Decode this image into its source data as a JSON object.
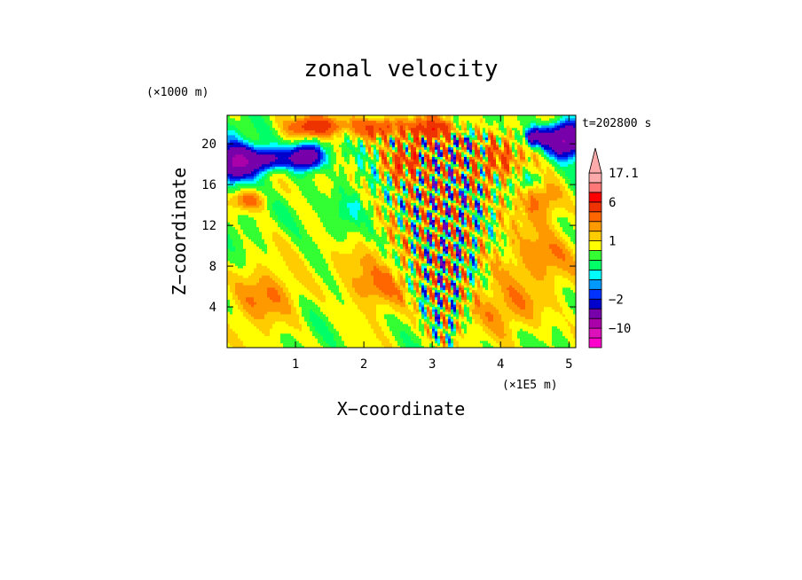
{
  "chart_data": {
    "type": "heatmap",
    "title": "zonal velocity",
    "xlabel": "X−coordinate",
    "ylabel": "Z−coordinate",
    "x_unit": "(×1E5 m)",
    "y_unit": "(×1000 m)",
    "time_label": "t=202800 s",
    "xlim": [
      0,
      5.1
    ],
    "ylim": [
      0,
      22.8
    ],
    "x_ticks": [
      "1",
      "2",
      "3",
      "4",
      "5"
    ],
    "x_tick_values": [
      1,
      2,
      3,
      4,
      5
    ],
    "y_ticks": [
      "4",
      "8",
      "12",
      "16",
      "20"
    ],
    "y_tick_values": [
      4,
      8,
      12,
      16,
      20
    ],
    "colorbar": {
      "labels": [
        "17.1",
        "6",
        "1",
        "−2",
        "−10"
      ],
      "label_values": [
        17.1,
        6,
        1,
        -2,
        -10
      ],
      "levels": [
        -20,
        -15,
        -10,
        -6,
        -3,
        -2,
        -1.5,
        -1,
        -0.5,
        0,
        0.5,
        1,
        1.5,
        2,
        3,
        6,
        10,
        15,
        17.1
      ],
      "colors": [
        "#ff00cc",
        "#dd11bb",
        "#aa00aa",
        "#7700aa",
        "#0000cc",
        "#0033ff",
        "#0099ff",
        "#00ffff",
        "#00ff66",
        "#33ff33",
        "#ffff00",
        "#ffcc00",
        "#ff9900",
        "#ff6600",
        "#ee3300",
        "#ff0000",
        "#ff7777",
        "#ffaaaa"
      ],
      "extend": "max"
    },
    "field_summary": "Jet-like disturbance centred near x=3.2 rising from the surface, strong negative (blue) cores near z=16-21 at x=0-0.4, 1-1.3 and 4.8-5.1, positive (orange/red) band near z=20-22 at x=1-3.3, weakly positive (yellow/green) elsewhere"
  }
}
